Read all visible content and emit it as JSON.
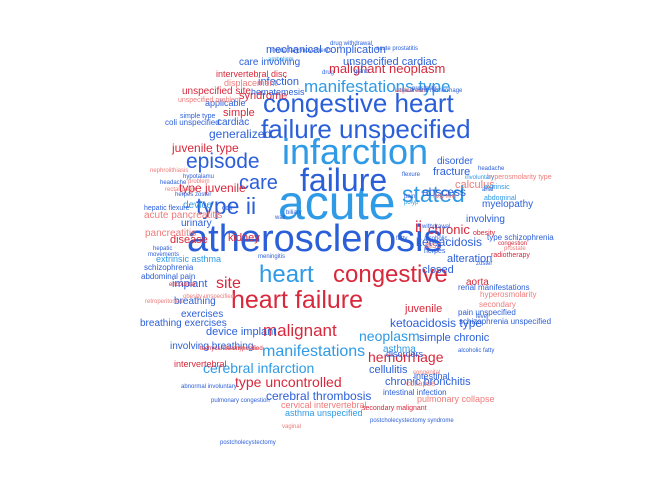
{
  "colors": {
    "blue": "#2b5fd9",
    "lightblue": "#2f9ae6",
    "red": "#d8283b",
    "salmon": "#ef7b7b",
    "navy": "#1f3fa8"
  },
  "words": [
    {
      "text": "acute",
      "c": "lightblue"
    },
    {
      "text": "atherosclerosis",
      "c": "blue"
    },
    {
      "text": "infarction",
      "c": "lightblue"
    },
    {
      "text": "failure",
      "c": "blue"
    },
    {
      "text": "congestive heart",
      "c": "blue"
    },
    {
      "text": "failure unspecified",
      "c": "blue"
    },
    {
      "text": "heart failure",
      "c": "red"
    },
    {
      "text": "congestive",
      "c": "red"
    },
    {
      "text": "heart",
      "c": "lightblue"
    },
    {
      "text": "stated",
      "c": "lightblue"
    },
    {
      "text": "type ii",
      "c": "blue"
    },
    {
      "text": "episode",
      "c": "blue"
    },
    {
      "text": "care",
      "c": "blue"
    },
    {
      "text": "manifestations type",
      "c": "lightblue"
    },
    {
      "text": "malignant",
      "c": "red"
    },
    {
      "text": "manifestations",
      "c": "lightblue"
    },
    {
      "text": "site",
      "c": "red"
    },
    {
      "text": "ii",
      "c": "red"
    },
    {
      "text": "cerebral infarction",
      "c": "lightblue"
    },
    {
      "text": "type uncontrolled",
      "c": "red"
    },
    {
      "text": "neoplasm",
      "c": "lightblue"
    },
    {
      "text": "hemorrhage",
      "c": "red"
    },
    {
      "text": "chronic",
      "c": "red"
    },
    {
      "text": "malignant neoplasm",
      "c": "red"
    },
    {
      "text": "juvenile type",
      "c": "red"
    },
    {
      "text": "generalized",
      "c": "blue"
    },
    {
      "text": "type juvenile",
      "c": "red"
    },
    {
      "text": "cerebral thrombosis",
      "c": "blue"
    },
    {
      "text": "ketoacidosis type",
      "c": "blue"
    },
    {
      "text": "abscess",
      "c": "blue"
    },
    {
      "text": "ketoacidosis",
      "c": "blue"
    },
    {
      "text": "juvenile",
      "c": "red"
    },
    {
      "text": "closed",
      "c": "blue"
    },
    {
      "text": "fracture",
      "c": "blue"
    },
    {
      "text": "kidney",
      "c": "red"
    },
    {
      "text": "disease",
      "c": "red"
    },
    {
      "text": "syndrome",
      "c": "red"
    },
    {
      "text": "mechanical complication",
      "c": "blue"
    },
    {
      "text": "device implant",
      "c": "blue"
    },
    {
      "text": "alteration",
      "c": "blue"
    },
    {
      "text": "cellulitis",
      "c": "blue"
    },
    {
      "text": "chronic bronchitis",
      "c": "blue"
    },
    {
      "text": "simple chronic",
      "c": "blue"
    },
    {
      "text": "unspecified cardiac",
      "c": "blue"
    },
    {
      "text": "simple",
      "c": "red"
    },
    {
      "text": "cardiac",
      "c": "blue"
    },
    {
      "text": "infection",
      "c": "blue"
    },
    {
      "text": "disorder",
      "c": "blue"
    },
    {
      "text": "calculus",
      "c": "salmon"
    },
    {
      "text": "implant",
      "c": "blue"
    },
    {
      "text": "urinary",
      "c": "blue"
    },
    {
      "text": "breathing",
      "c": "blue"
    },
    {
      "text": "exercises",
      "c": "blue"
    },
    {
      "text": "breathing exercises",
      "c": "blue"
    },
    {
      "text": "involving breathing",
      "c": "blue"
    },
    {
      "text": "unspecified site",
      "c": "red"
    },
    {
      "text": "care involving",
      "c": "blue"
    },
    {
      "text": "device",
      "c": "lightblue"
    },
    {
      "text": "acute pancreatitis",
      "c": "salmon"
    },
    {
      "text": "pancreatitis",
      "c": "salmon"
    },
    {
      "text": "myelopathy",
      "c": "blue"
    },
    {
      "text": "involving",
      "c": "blue"
    },
    {
      "text": "aorta",
      "c": "red"
    },
    {
      "text": "intervertebral disc",
      "c": "red"
    },
    {
      "text": "displacement",
      "c": "salmon"
    },
    {
      "text": "applicable",
      "c": "blue"
    },
    {
      "text": "hematemesis",
      "c": "blue"
    },
    {
      "text": "asthma",
      "c": "lightblue"
    },
    {
      "text": "disorders",
      "c": "blue"
    },
    {
      "text": "asthma unspecified",
      "c": "lightblue"
    },
    {
      "text": "cervical intervertebral",
      "c": "salmon"
    },
    {
      "text": "pulmonary collapse",
      "c": "salmon"
    },
    {
      "text": "intervertebral",
      "c": "red"
    },
    {
      "text": "extrinsic asthma",
      "c": "lightblue"
    },
    {
      "text": "schizophrenia",
      "c": "blue"
    },
    {
      "text": "abdominal pain",
      "c": "blue"
    },
    {
      "text": "renal manifestations",
      "c": "blue"
    },
    {
      "text": "hyperosmolarity",
      "c": "salmon"
    },
    {
      "text": "secondary",
      "c": "salmon"
    },
    {
      "text": "pain unspecified",
      "c": "blue"
    },
    {
      "text": "schizophrenia unspecified",
      "c": "blue"
    },
    {
      "text": "type schizophrenia",
      "c": "blue"
    },
    {
      "text": "obesity",
      "c": "red"
    },
    {
      "text": "radiotherapy",
      "c": "red"
    },
    {
      "text": "secondary malignant",
      "c": "red"
    },
    {
      "text": "intestinal",
      "c": "blue"
    },
    {
      "text": "intestinal infection",
      "c": "blue"
    },
    {
      "text": "collapse",
      "c": "salmon"
    },
    {
      "text": "disc",
      "c": "salmon"
    },
    {
      "text": "herpes",
      "c": "blue"
    },
    {
      "text": "hyperosmolarity type",
      "c": "salmon"
    },
    {
      "text": "abdominal",
      "c": "lightblue"
    },
    {
      "text": "extrinsic",
      "c": "lightblue"
    },
    {
      "text": "coli unspecified",
      "c": "blue"
    },
    {
      "text": "simple type",
      "c": "blue"
    },
    {
      "text": "unspecified problem",
      "c": "salmon"
    },
    {
      "text": "hepatic flexure",
      "c": "blue"
    },
    {
      "text": "coli",
      "c": "blue"
    },
    {
      "text": "nephrolithiasis",
      "c": "salmon"
    },
    {
      "text": "headache",
      "c": "blue"
    },
    {
      "text": "hypotalamu",
      "c": "blue"
    },
    {
      "text": "rectal polyp",
      "c": "salmon"
    },
    {
      "text": "herpes zoster",
      "c": "blue"
    },
    {
      "text": "involuntary movements",
      "c": "blue"
    },
    {
      "text": "drug withdrawal",
      "c": "blue"
    },
    {
      "text": "acute prostatitis",
      "c": "blue"
    },
    {
      "text": "ambolism",
      "c": "lightblue"
    },
    {
      "text": "drug",
      "c": "blue"
    },
    {
      "text": "gland",
      "c": "blue"
    },
    {
      "text": "intracerebral hemorrhage",
      "c": "blue"
    },
    {
      "text": "vaginal wall",
      "c": "salmon"
    },
    {
      "text": "retroperitoneal",
      "c": "salmon"
    },
    {
      "text": "prostatitis",
      "c": "blue"
    },
    {
      "text": "vaginal",
      "c": "salmon"
    },
    {
      "text": "postcholecystectomy syndrome",
      "c": "blue"
    },
    {
      "text": "postcholecystectomy",
      "c": "blue"
    },
    {
      "text": "pulmonary congestion",
      "c": "blue"
    },
    {
      "text": "abnormal involuntary",
      "c": "blue"
    },
    {
      "text": "tachycardia unspecified",
      "c": "red"
    },
    {
      "text": "encounter",
      "c": "red"
    },
    {
      "text": "obesity unspecified",
      "c": "salmon"
    },
    {
      "text": "hepatic",
      "c": "blue"
    },
    {
      "text": "movements",
      "c": "blue"
    },
    {
      "text": "meningitis",
      "c": "blue"
    },
    {
      "text": "flexure",
      "c": "blue"
    },
    {
      "text": "withdrawal",
      "c": "blue"
    },
    {
      "text": "fatty liver",
      "c": "salmon"
    },
    {
      "text": "alcoholic",
      "c": "blue"
    },
    {
      "text": "fatty",
      "c": "blue"
    },
    {
      "text": "polyp",
      "c": "lightblue"
    },
    {
      "text": "pain",
      "c": "blue"
    },
    {
      "text": "level",
      "c": "blue"
    },
    {
      "text": "congestion",
      "c": "red"
    },
    {
      "text": "prostate",
      "c": "salmon"
    },
    {
      "text": "zoster",
      "c": "blue"
    },
    {
      "text": "congenital",
      "c": "salmon"
    },
    {
      "text": "alcoholic fatty",
      "c": "blue"
    },
    {
      "text": "tachycardia",
      "c": "salmon"
    },
    {
      "text": "biliary",
      "c": "blue"
    },
    {
      "text": "wall",
      "c": "blue"
    },
    {
      "text": "anal",
      "c": "blue"
    },
    {
      "text": "involuntary",
      "c": "lightblue"
    },
    {
      "text": "problem",
      "c": "salmon"
    },
    {
      "text": "headache",
      "c": "blue"
    },
    {
      "text": "capital",
      "c": "salmon"
    }
  ]
}
